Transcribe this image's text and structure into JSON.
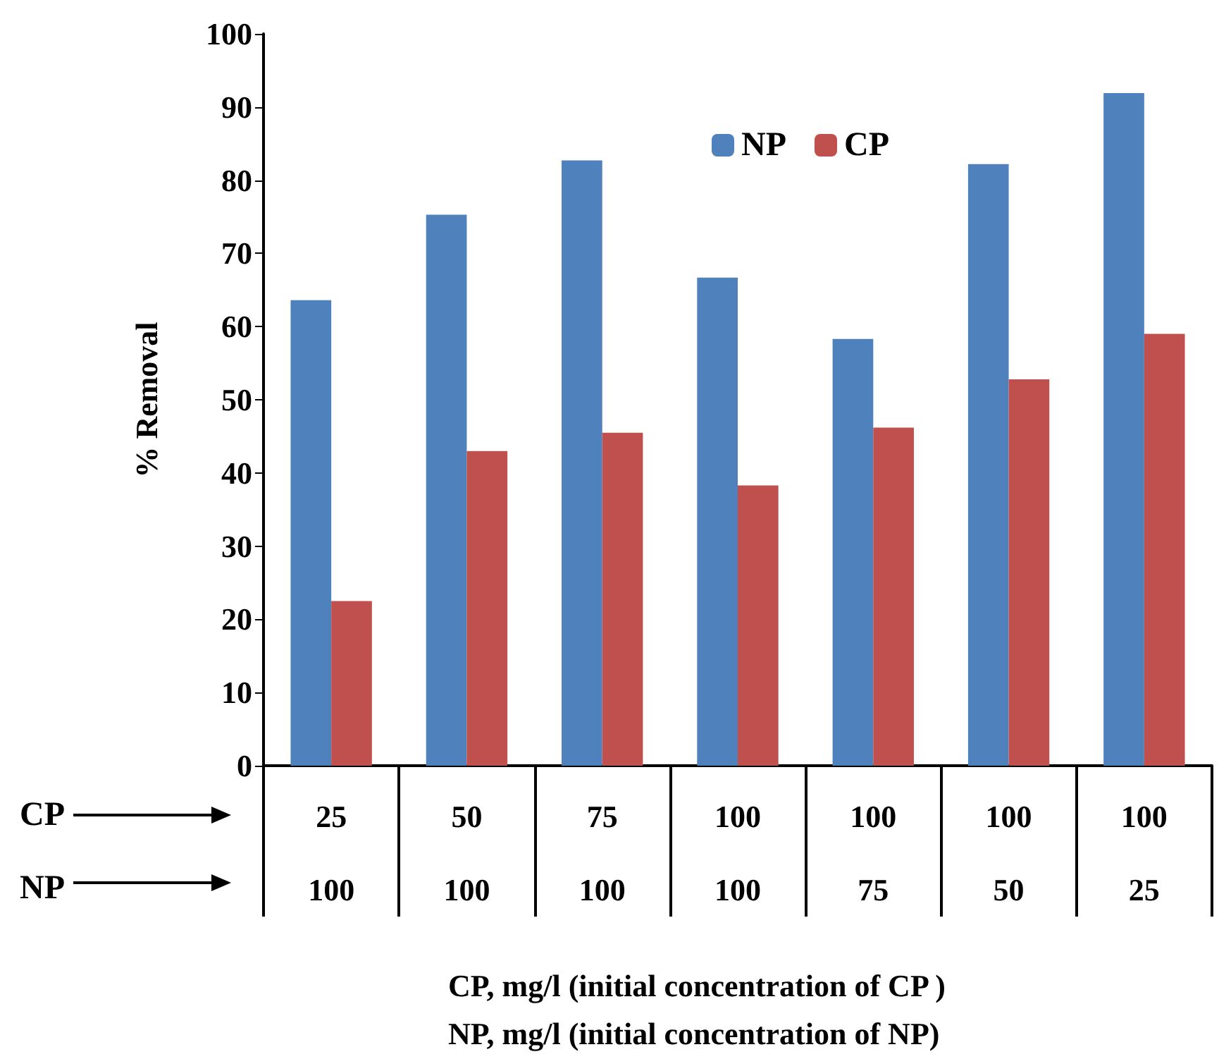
{
  "chart_data": {
    "type": "bar",
    "categories": [
      "25\n100",
      "50\n100",
      "75\n100",
      "100\n100",
      "100\n75",
      "100\n50",
      "100\n25"
    ],
    "series": [
      {
        "name": "NP",
        "color": "#4f81bd",
        "values": [
          63.6,
          75.3,
          82.7,
          66.7,
          58.3,
          82.2,
          91.9
        ]
      },
      {
        "name": "CP",
        "color": "#c0504d",
        "values": [
          22.5,
          43.0,
          45.5,
          38.3,
          46.2,
          52.8,
          59.0
        ]
      }
    ],
    "ylabel": "% Removal",
    "annotations": [
      "CP",
      "NP",
      "CP, mg/l (initial concentration of CP )\nNP, mg/l (initial concentration of NP)"
    ],
    "ylim": [
      0,
      100
    ],
    "yticks": [
      0,
      10,
      20,
      30,
      40,
      50,
      60,
      70,
      80,
      90,
      100
    ],
    "grid": false,
    "legend": "top"
  }
}
